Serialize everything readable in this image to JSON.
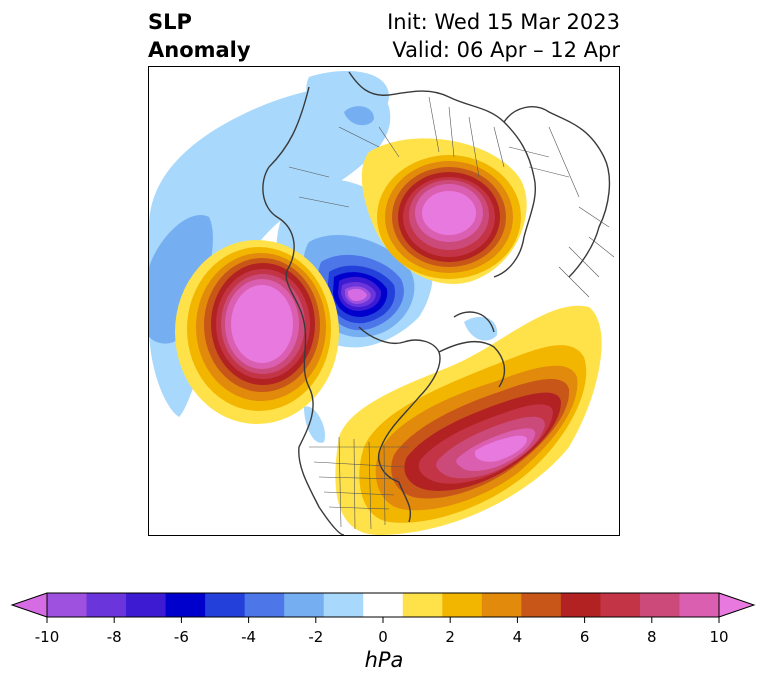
{
  "title": {
    "left_line1": "SLP",
    "left_line2": "Anomaly",
    "right_line1": "Init: Wed 15 Mar 2023",
    "right_line2": "Valid: 06 Apr – 12 Apr"
  },
  "colorbar": {
    "unit": "hPa",
    "tick_labels": [
      "-10",
      "-8",
      "-6",
      "-4",
      "-2",
      "0",
      "2",
      "4",
      "6",
      "8",
      "10"
    ],
    "colors": [
      "#d66ce3",
      "#9e50df",
      "#6a35da",
      "#3c1bd3",
      "#0000cc",
      "#2340db",
      "#4d77e8",
      "#76aef2",
      "#a8d8fb",
      "#ffffff",
      "#ffe24a",
      "#f3b600",
      "#e18a0c",
      "#c95619",
      "#b22222",
      "#c33447",
      "#cc4a7a",
      "#db5fb1",
      "#e879de"
    ],
    "extend": "both"
  }
}
